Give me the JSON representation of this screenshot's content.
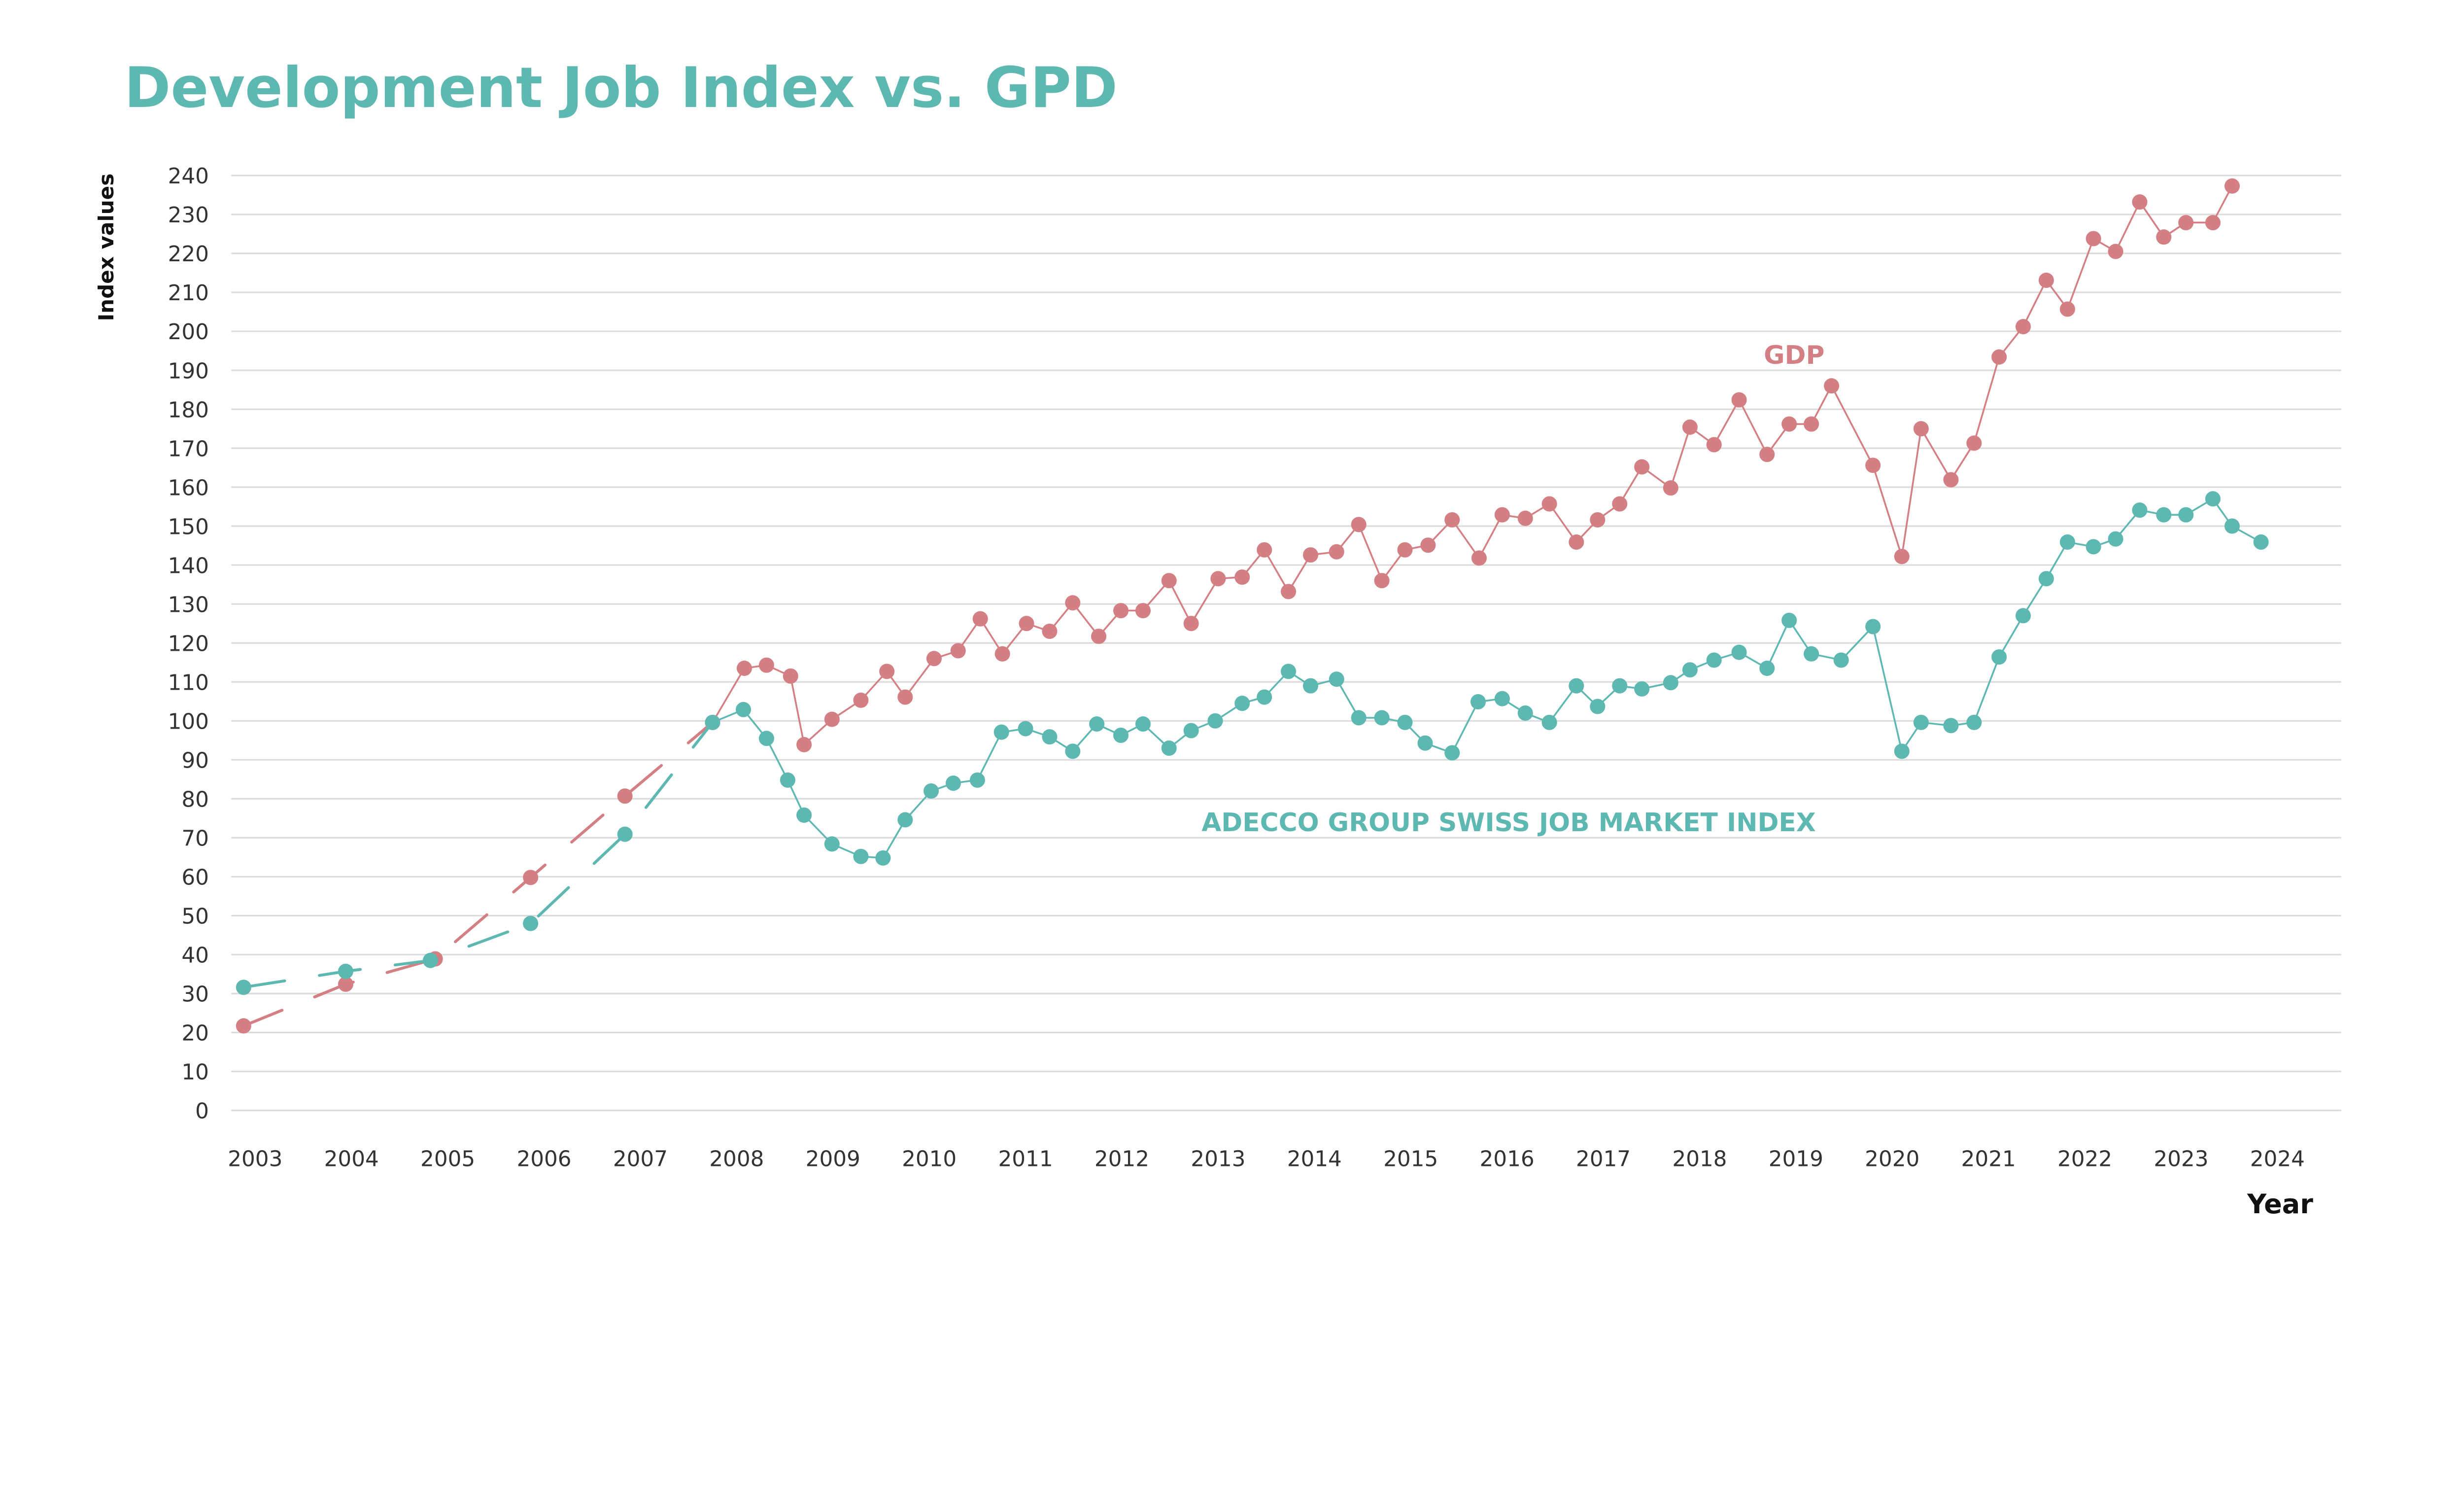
{
  "colors": {
    "gdp": "#d47f84",
    "adecco": "#5db8b2",
    "title": "#5db8b2",
    "grid": "#dcdcdc"
  },
  "chart_data": {
    "type": "line",
    "title": "Development Job Index vs. GPD",
    "xlabel": "Year",
    "ylabel": "Index values",
    "xlim": [
      2003,
      2024
    ],
    "ylim": [
      0,
      240
    ],
    "grid": true,
    "x_ticks": [
      "2003",
      "2004",
      "2005",
      "2006",
      "2007",
      "2008",
      "2009",
      "2010",
      "2011",
      "2012",
      "2013",
      "2014",
      "2015",
      "2016",
      "2017",
      "2018",
      "2019",
      "2020",
      "2021",
      "2022",
      "2023",
      "2024"
    ],
    "y_ticks": [
      "0",
      "10",
      "20",
      "30",
      "40",
      "50",
      "60",
      "70",
      "80",
      "90",
      "100",
      "110",
      "120",
      "130",
      "140",
      "150",
      "160",
      "170",
      "180",
      "190",
      "200",
      "210",
      "220",
      "230",
      "240"
    ],
    "legend": "inline labels",
    "dashed_until": 2007.75,
    "series": [
      {
        "name": "GDP",
        "color": "#d47f84",
        "points": [
          [
            2002.88,
            21.7
          ],
          [
            2003.94,
            32.4
          ],
          [
            2004.87,
            38.9
          ],
          [
            2005.86,
            59.8
          ],
          [
            2006.84,
            80.7
          ],
          [
            2007.75,
            99.6
          ],
          [
            2008.08,
            113.5
          ],
          [
            2008.31,
            114.3
          ],
          [
            2008.56,
            111.5
          ],
          [
            2008.7,
            93.9
          ],
          [
            2008.99,
            100.4
          ],
          [
            2009.29,
            105.3
          ],
          [
            2009.56,
            112.7
          ],
          [
            2009.75,
            106.1
          ],
          [
            2010.05,
            116
          ],
          [
            2010.3,
            118
          ],
          [
            2010.53,
            126.2
          ],
          [
            2010.76,
            117.2
          ],
          [
            2011.01,
            125
          ],
          [
            2011.25,
            123
          ],
          [
            2011.49,
            130.3
          ],
          [
            2011.76,
            121.7
          ],
          [
            2011.99,
            128.3
          ],
          [
            2012.22,
            128.3
          ],
          [
            2012.49,
            136
          ],
          [
            2012.72,
            125
          ],
          [
            2013.0,
            136.5
          ],
          [
            2013.25,
            136.9
          ],
          [
            2013.48,
            143.9
          ],
          [
            2013.73,
            133.2
          ],
          [
            2013.96,
            142.6
          ],
          [
            2014.23,
            143.4
          ],
          [
            2014.46,
            150.4
          ],
          [
            2014.7,
            136
          ],
          [
            2014.94,
            143.9
          ],
          [
            2015.18,
            145.1
          ],
          [
            2015.43,
            151.6
          ],
          [
            2015.71,
            141.8
          ],
          [
            2015.95,
            152.9
          ],
          [
            2016.19,
            152
          ],
          [
            2016.44,
            155.7
          ],
          [
            2016.72,
            145.9
          ],
          [
            2016.94,
            151.6
          ],
          [
            2017.17,
            155.7
          ],
          [
            2017.4,
            165.2
          ],
          [
            2017.7,
            159.8
          ],
          [
            2017.9,
            175.4
          ],
          [
            2018.15,
            170.9
          ],
          [
            2018.41,
            182.4
          ],
          [
            2018.7,
            168.4
          ],
          [
            2018.93,
            176.2
          ],
          [
            2019.16,
            176.2
          ],
          [
            2019.37,
            186
          ],
          [
            2019.8,
            165.6
          ],
          [
            2020.1,
            142.2
          ],
          [
            2020.3,
            175
          ],
          [
            2020.61,
            161.9
          ],
          [
            2020.85,
            171.3
          ],
          [
            2021.11,
            193.4
          ],
          [
            2021.36,
            201.2
          ],
          [
            2021.6,
            213.1
          ],
          [
            2021.82,
            205.7
          ],
          [
            2022.09,
            223.8
          ],
          [
            2022.32,
            220.5
          ],
          [
            2022.57,
            233.2
          ],
          [
            2022.82,
            224.2
          ],
          [
            2023.05,
            227.9
          ],
          [
            2023.33,
            227.9
          ],
          [
            2023.53,
            237.3
          ]
        ]
      },
      {
        "name": "ADECCO GROUP SWISS JOB MARKET INDEX",
        "color": "#5db8b2",
        "points": [
          [
            2002.88,
            31.6
          ],
          [
            2003.94,
            35.7
          ],
          [
            2004.82,
            38.5
          ],
          [
            2005.86,
            48
          ],
          [
            2006.84,
            70.9
          ],
          [
            2007.75,
            99.6
          ],
          [
            2008.07,
            102.9
          ],
          [
            2008.31,
            95.5
          ],
          [
            2008.53,
            84.8
          ],
          [
            2008.7,
            75.8
          ],
          [
            2008.99,
            68.4
          ],
          [
            2009.29,
            65.2
          ],
          [
            2009.52,
            64.8
          ],
          [
            2009.75,
            74.6
          ],
          [
            2010.02,
            82
          ],
          [
            2010.25,
            84
          ],
          [
            2010.5,
            84.8
          ],
          [
            2010.75,
            97.1
          ],
          [
            2011.0,
            98
          ],
          [
            2011.25,
            95.9
          ],
          [
            2011.49,
            92.2
          ],
          [
            2011.74,
            99.2
          ],
          [
            2011.99,
            96.3
          ],
          [
            2012.22,
            99.2
          ],
          [
            2012.49,
            93
          ],
          [
            2012.72,
            97.5
          ],
          [
            2012.97,
            100
          ],
          [
            2013.25,
            104.5
          ],
          [
            2013.48,
            106.1
          ],
          [
            2013.73,
            112.7
          ],
          [
            2013.96,
            109
          ],
          [
            2014.23,
            110.7
          ],
          [
            2014.46,
            100.8
          ],
          [
            2014.7,
            100.8
          ],
          [
            2014.94,
            99.6
          ],
          [
            2015.15,
            94.3
          ],
          [
            2015.43,
            91.8
          ],
          [
            2015.7,
            104.9
          ],
          [
            2015.95,
            105.7
          ],
          [
            2016.19,
            102
          ],
          [
            2016.44,
            99.6
          ],
          [
            2016.72,
            109
          ],
          [
            2016.94,
            103.7
          ],
          [
            2017.17,
            109
          ],
          [
            2017.4,
            108.2
          ],
          [
            2017.7,
            109.8
          ],
          [
            2017.9,
            113.1
          ],
          [
            2018.15,
            115.6
          ],
          [
            2018.41,
            117.6
          ],
          [
            2018.7,
            113.5
          ],
          [
            2018.93,
            125.8
          ],
          [
            2019.16,
            117.2
          ],
          [
            2019.47,
            115.6
          ],
          [
            2019.8,
            124.2
          ],
          [
            2020.1,
            92.2
          ],
          [
            2020.3,
            99.6
          ],
          [
            2020.61,
            98.8
          ],
          [
            2020.85,
            99.6
          ],
          [
            2021.11,
            116.4
          ],
          [
            2021.36,
            127
          ],
          [
            2021.6,
            136.5
          ],
          [
            2021.82,
            145.9
          ],
          [
            2022.09,
            144.7
          ],
          [
            2022.32,
            146.7
          ],
          [
            2022.57,
            154.1
          ],
          [
            2022.82,
            152.9
          ],
          [
            2023.05,
            152.9
          ],
          [
            2023.33,
            157
          ],
          [
            2023.53,
            150
          ],
          [
            2023.83,
            145.9
          ]
        ]
      }
    ],
    "labels": {
      "gdp": "GDP",
      "adecco": "ADECCO GROUP SWISS JOB MARKET INDEX"
    }
  }
}
